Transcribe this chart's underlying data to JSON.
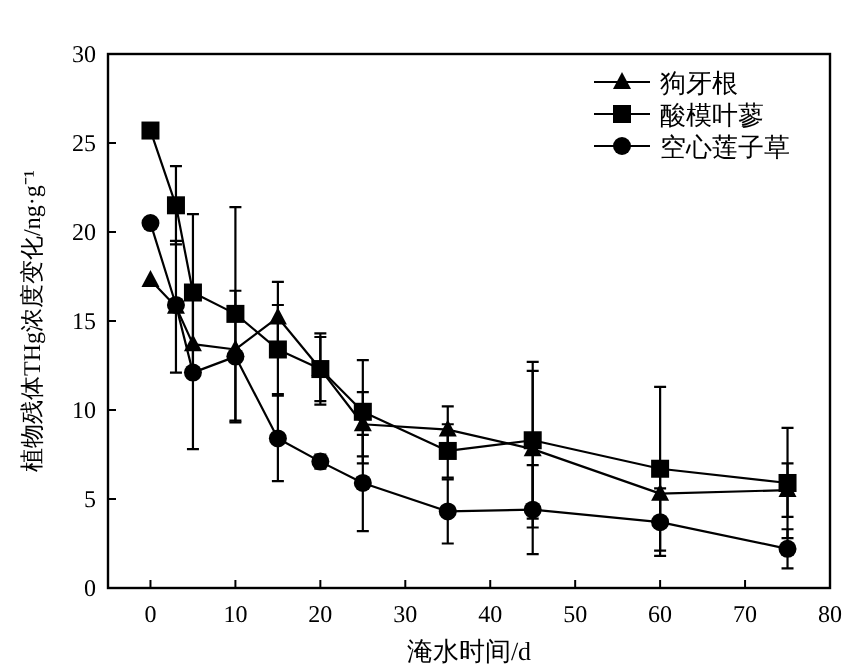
{
  "chart_data": {
    "type": "line",
    "xlabel": "淹水时间/d",
    "ylabel": "植物残体THg浓度变化/ng·g⁻¹",
    "xlim": [
      -5,
      80
    ],
    "ylim": [
      0,
      30
    ],
    "xticks": [
      0,
      10,
      20,
      30,
      40,
      50,
      60,
      70,
      80
    ],
    "yticks": [
      0,
      5,
      10,
      15,
      20,
      25,
      30
    ],
    "legend": "top right",
    "grid": false,
    "x": [
      0,
      3,
      5,
      10,
      15,
      20,
      25,
      35,
      45,
      60,
      75
    ],
    "series": [
      {
        "name": "狗牙根",
        "color": "#000000",
        "marker": "triangle",
        "values": [
          17.3,
          15.8,
          13.7,
          13.4,
          15.2,
          12.3,
          9.2,
          8.9,
          7.8,
          5.3,
          5.5
        ],
        "errors": [
          null,
          3.7,
          null,
          null,
          2.0,
          1.8,
          1.8,
          1.3,
          4.4,
          1.5,
          1.5
        ]
      },
      {
        "name": "酸模叶蓼",
        "color": "#000000",
        "marker": "square",
        "values": [
          25.7,
          21.5,
          16.6,
          15.4,
          13.4,
          12.3,
          9.9,
          7.7,
          8.3,
          6.7,
          5.9
        ],
        "errors": [
          null,
          2.2,
          4.4,
          6.0,
          2.5,
          2.0,
          2.9,
          1.5,
          4.4,
          4.6,
          3.1
        ]
      },
      {
        "name": "空心莲子草",
        "color": "#000000",
        "marker": "circle",
        "values": [
          20.5,
          15.9,
          12.1,
          13.0,
          8.4,
          7.1,
          5.9,
          4.3,
          4.4,
          3.7,
          2.2
        ],
        "errors": [
          null,
          null,
          4.3,
          3.7,
          2.4,
          0.4,
          2.7,
          1.8,
          2.5,
          1.9,
          1.1
        ]
      }
    ]
  }
}
